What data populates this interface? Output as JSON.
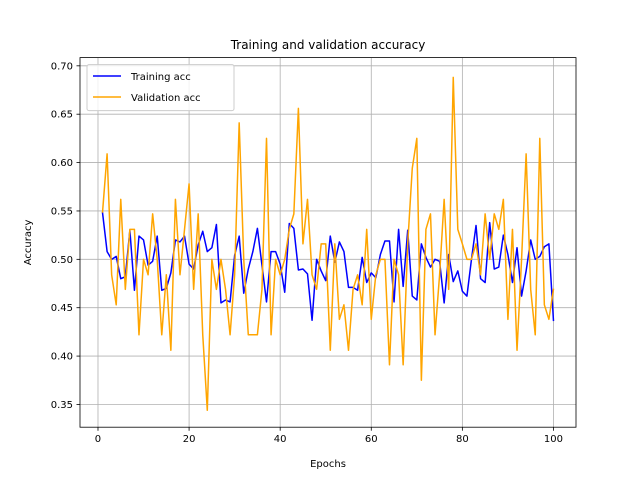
{
  "chart_data": {
    "type": "line",
    "title": "Training and validation accuracy",
    "xlabel": "Epochs",
    "ylabel": "Accuracy",
    "xlim": [
      -3.95,
      104.95
    ],
    "ylim": [
      0.3265,
      0.7085
    ],
    "xticks": [
      0,
      20,
      40,
      60,
      80,
      100
    ],
    "yticks": [
      0.35,
      0.4,
      0.45,
      0.5,
      0.55,
      0.6,
      0.65,
      0.7
    ],
    "ytick_labels": [
      "0.35",
      "0.40",
      "0.45",
      "0.50",
      "0.55",
      "0.60",
      "0.65",
      "0.70"
    ],
    "grid": true,
    "legend_position": "upper-left",
    "series": [
      {
        "name": "Training acc",
        "color": "#0000ff",
        "x": [
          1,
          2,
          3,
          4,
          5,
          6,
          7,
          8,
          9,
          10,
          11,
          12,
          13,
          14,
          15,
          16,
          17,
          18,
          19,
          20,
          21,
          22,
          23,
          24,
          25,
          26,
          27,
          28,
          29,
          30,
          31,
          32,
          33,
          34,
          35,
          36,
          37,
          38,
          39,
          40,
          41,
          42,
          43,
          44,
          45,
          46,
          47,
          48,
          49,
          50,
          51,
          52,
          53,
          54,
          55,
          56,
          57,
          58,
          59,
          60,
          61,
          62,
          63,
          64,
          65,
          66,
          67,
          68,
          69,
          70,
          71,
          72,
          73,
          74,
          75,
          76,
          77,
          78,
          79,
          80,
          81,
          82,
          83,
          84,
          85,
          86,
          87,
          88,
          89,
          90,
          91,
          92,
          93,
          94,
          95,
          96,
          97,
          98,
          99,
          100
        ],
        "values": [
          0.548,
          0.508,
          0.5,
          0.503,
          0.48,
          0.482,
          0.53,
          0.468,
          0.524,
          0.52,
          0.494,
          0.498,
          0.524,
          0.468,
          0.47,
          0.486,
          0.52,
          0.518,
          0.524,
          0.495,
          0.49,
          0.515,
          0.529,
          0.508,
          0.512,
          0.536,
          0.455,
          0.458,
          0.456,
          0.504,
          0.524,
          0.465,
          0.49,
          0.508,
          0.532,
          0.494,
          0.456,
          0.508,
          0.508,
          0.495,
          0.466,
          0.537,
          0.532,
          0.489,
          0.49,
          0.485,
          0.437,
          0.5,
          0.488,
          0.478,
          0.524,
          0.497,
          0.518,
          0.508,
          0.471,
          0.471,
          0.468,
          0.502,
          0.476,
          0.486,
          0.481,
          0.505,
          0.519,
          0.519,
          0.456,
          0.531,
          0.472,
          0.53,
          0.462,
          0.458,
          0.516,
          0.502,
          0.492,
          0.5,
          0.498,
          0.455,
          0.505,
          0.477,
          0.488,
          0.467,
          0.462,
          0.5,
          0.535,
          0.48,
          0.476,
          0.538,
          0.49,
          0.492,
          0.525,
          0.505,
          0.476,
          0.512,
          0.462,
          0.488,
          0.52,
          0.5,
          0.503,
          0.513,
          0.516,
          0.437
        ]
      },
      {
        "name": "Validation acc",
        "color": "#ffa500",
        "x": [
          1,
          2,
          3,
          4,
          5,
          6,
          7,
          8,
          9,
          10,
          11,
          12,
          13,
          14,
          15,
          16,
          17,
          18,
          19,
          20,
          21,
          22,
          23,
          24,
          25,
          26,
          27,
          28,
          29,
          30,
          31,
          32,
          33,
          34,
          35,
          36,
          37,
          38,
          39,
          40,
          41,
          42,
          43,
          44,
          45,
          46,
          47,
          48,
          49,
          50,
          51,
          52,
          53,
          54,
          55,
          56,
          57,
          58,
          59,
          60,
          61,
          62,
          63,
          64,
          65,
          66,
          67,
          68,
          69,
          70,
          71,
          72,
          73,
          74,
          75,
          76,
          77,
          78,
          79,
          80,
          81,
          82,
          83,
          84,
          85,
          86,
          87,
          88,
          89,
          90,
          91,
          92,
          93,
          94,
          95,
          96,
          97,
          98,
          99,
          100
        ],
        "values": [
          0.549,
          0.609,
          0.484,
          0.453,
          0.562,
          0.469,
          0.531,
          0.531,
          0.422,
          0.5,
          0.484,
          0.547,
          0.5,
          0.422,
          0.484,
          0.406,
          0.562,
          0.484,
          0.531,
          0.578,
          0.469,
          0.547,
          0.422,
          0.344,
          0.5,
          0.469,
          0.5,
          0.469,
          0.422,
          0.484,
          0.641,
          0.5,
          0.422,
          0.422,
          0.422,
          0.469,
          0.625,
          0.422,
          0.5,
          0.484,
          0.5,
          0.531,
          0.547,
          0.656,
          0.516,
          0.562,
          0.484,
          0.469,
          0.516,
          0.516,
          0.406,
          0.516,
          0.438,
          0.453,
          0.406,
          0.469,
          0.484,
          0.453,
          0.531,
          0.438,
          0.484,
          0.5,
          0.5,
          0.391,
          0.5,
          0.484,
          0.391,
          0.516,
          0.594,
          0.625,
          0.375,
          0.531,
          0.547,
          0.422,
          0.484,
          0.562,
          0.469,
          0.688,
          0.531,
          0.516,
          0.5,
          0.5,
          0.516,
          0.484,
          0.547,
          0.5,
          0.547,
          0.531,
          0.562,
          0.438,
          0.531,
          0.406,
          0.5,
          0.609,
          0.469,
          0.422,
          0.625,
          0.453,
          0.438,
          0.469
        ]
      }
    ]
  }
}
